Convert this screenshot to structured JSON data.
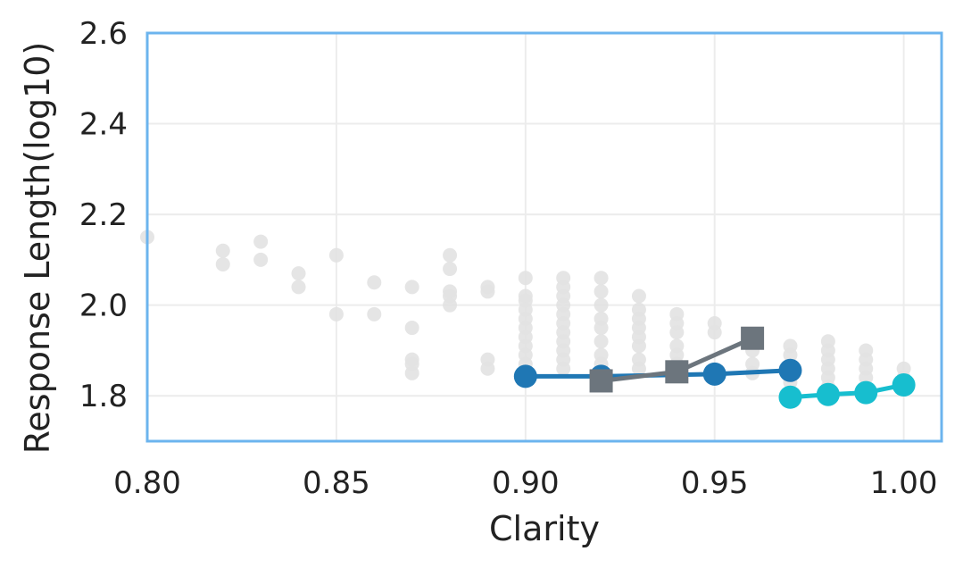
{
  "chart_data": {
    "type": "scatter",
    "xlabel": "Clarity",
    "ylabel": "Response Length(log10)",
    "xlim": [
      0.8,
      1.01
    ],
    "ylim": [
      1.7,
      2.6
    ],
    "x_ticks": [
      0.8,
      0.85,
      0.9,
      0.95,
      1.0
    ],
    "x_tick_labels": [
      "0.80",
      "0.85",
      "0.90",
      "0.95",
      "1.00"
    ],
    "y_ticks": [
      1.8,
      2.0,
      2.2,
      2.4,
      2.6
    ],
    "y_tick_labels": [
      "1.8",
      "2.0",
      "2.2",
      "2.4",
      "2.6"
    ],
    "grid": true,
    "frame_color": "#6cb4ee",
    "background_points": {
      "color": "#e2e2e2",
      "points": [
        [
          0.8,
          2.15
        ],
        [
          0.82,
          2.12
        ],
        [
          0.82,
          2.09
        ],
        [
          0.83,
          2.14
        ],
        [
          0.83,
          2.1
        ],
        [
          0.84,
          2.07
        ],
        [
          0.84,
          2.04
        ],
        [
          0.85,
          2.11
        ],
        [
          0.85,
          1.98
        ],
        [
          0.86,
          2.05
        ],
        [
          0.86,
          1.98
        ],
        [
          0.87,
          2.04
        ],
        [
          0.87,
          1.95
        ],
        [
          0.87,
          1.88
        ],
        [
          0.87,
          1.87
        ],
        [
          0.87,
          1.85
        ],
        [
          0.88,
          2.11
        ],
        [
          0.88,
          2.08
        ],
        [
          0.88,
          2.03
        ],
        [
          0.88,
          2.02
        ],
        [
          0.88,
          2.0
        ],
        [
          0.89,
          2.04
        ],
        [
          0.89,
          2.03
        ],
        [
          0.89,
          1.88
        ],
        [
          0.89,
          1.86
        ],
        [
          0.9,
          2.06
        ],
        [
          0.9,
          2.02
        ],
        [
          0.9,
          2.01
        ],
        [
          0.9,
          1.99
        ],
        [
          0.9,
          1.97
        ],
        [
          0.9,
          1.95
        ],
        [
          0.9,
          1.93
        ],
        [
          0.9,
          1.91
        ],
        [
          0.9,
          1.89
        ],
        [
          0.9,
          1.87
        ],
        [
          0.91,
          2.06
        ],
        [
          0.91,
          2.04
        ],
        [
          0.91,
          2.02
        ],
        [
          0.91,
          2.0
        ],
        [
          0.91,
          1.98
        ],
        [
          0.91,
          1.96
        ],
        [
          0.91,
          1.94
        ],
        [
          0.91,
          1.92
        ],
        [
          0.91,
          1.9
        ],
        [
          0.91,
          1.88
        ],
        [
          0.91,
          1.86
        ],
        [
          0.92,
          2.06
        ],
        [
          0.92,
          2.03
        ],
        [
          0.92,
          2.0
        ],
        [
          0.92,
          1.97
        ],
        [
          0.92,
          1.95
        ],
        [
          0.92,
          1.92
        ],
        [
          0.92,
          1.89
        ],
        [
          0.92,
          1.87
        ],
        [
          0.92,
          1.84
        ],
        [
          0.93,
          2.02
        ],
        [
          0.93,
          1.99
        ],
        [
          0.93,
          1.97
        ],
        [
          0.93,
          1.95
        ],
        [
          0.93,
          1.93
        ],
        [
          0.93,
          1.91
        ],
        [
          0.93,
          1.88
        ],
        [
          0.93,
          1.86
        ],
        [
          0.94,
          1.98
        ],
        [
          0.94,
          1.96
        ],
        [
          0.94,
          1.94
        ],
        [
          0.94,
          1.91
        ],
        [
          0.94,
          1.89
        ],
        [
          0.94,
          1.87
        ],
        [
          0.94,
          1.85
        ],
        [
          0.95,
          1.96
        ],
        [
          0.95,
          1.94
        ],
        [
          0.96,
          1.92
        ],
        [
          0.96,
          1.9
        ],
        [
          0.96,
          1.87
        ],
        [
          0.96,
          1.85
        ],
        [
          0.97,
          1.91
        ],
        [
          0.97,
          1.89
        ],
        [
          0.97,
          1.86
        ],
        [
          0.97,
          1.83
        ],
        [
          0.98,
          1.92
        ],
        [
          0.98,
          1.9
        ],
        [
          0.98,
          1.88
        ],
        [
          0.98,
          1.86
        ],
        [
          0.98,
          1.84
        ],
        [
          0.98,
          1.82
        ],
        [
          0.99,
          1.9
        ],
        [
          0.99,
          1.88
        ],
        [
          0.99,
          1.86
        ],
        [
          0.99,
          1.84
        ],
        [
          0.99,
          1.82
        ],
        [
          1.0,
          1.86
        ],
        [
          1.0,
          1.84
        ]
      ]
    },
    "series": [
      {
        "marker": "circle",
        "color": "#1f77b4",
        "x": [
          0.9,
          0.92,
          0.95,
          0.97
        ],
        "y": [
          1.843,
          1.843,
          1.848,
          1.856
        ]
      },
      {
        "marker": "square",
        "color": "#6c757d",
        "x": [
          0.92,
          0.94,
          0.96
        ],
        "y": [
          1.833,
          1.853,
          1.927
        ]
      },
      {
        "marker": "circle",
        "color": "#17becf",
        "x": [
          0.97,
          0.98,
          0.99,
          1.0
        ],
        "y": [
          1.797,
          1.803,
          1.807,
          1.824
        ]
      }
    ]
  }
}
